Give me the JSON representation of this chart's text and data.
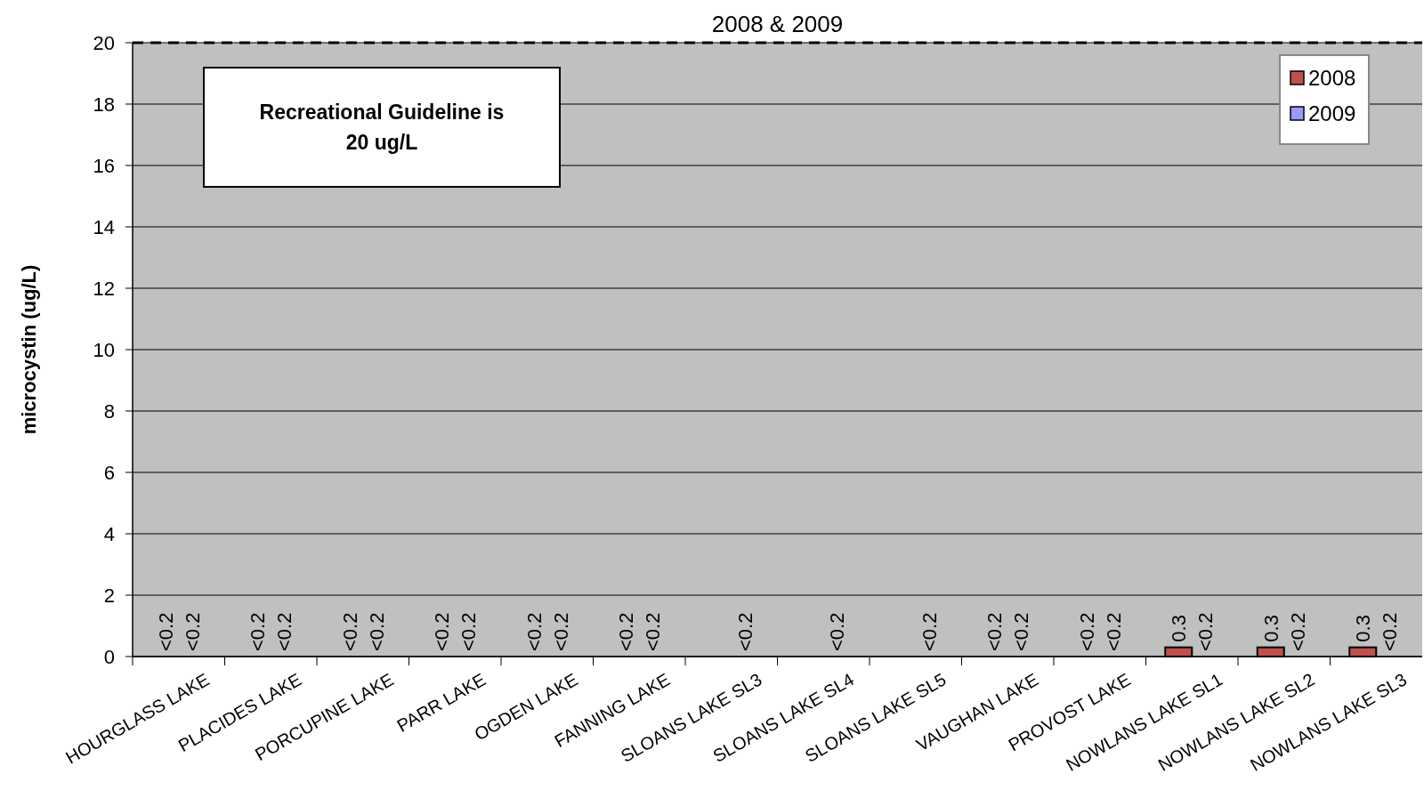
{
  "chart_data": {
    "type": "bar",
    "title": "2008 & 2009",
    "ylabel": "microcystin (ug/L)",
    "categories": [
      "HOURGLASS LAKE",
      "PLACIDES LAKE",
      "PORCUPINE LAKE",
      "PARR LAKE",
      "OGDEN LAKE",
      "FANNING LAKE",
      "SLOANS LAKE SL3",
      "SLOANS LAKE SL4",
      "SLOANS LAKE SL5",
      "VAUGHAN LAKE",
      "PROVOST LAKE",
      "NOWLANS LAKE SL1",
      "NOWLANS LAKE SL2",
      "NOWLANS LAKE SL3"
    ],
    "series": [
      {
        "name": "2008",
        "color": "#c0504d",
        "values": [
          null,
          null,
          null,
          null,
          null,
          null,
          null,
          null,
          null,
          null,
          null,
          0.3,
          0.3,
          0.3
        ],
        "value_labels": [
          "<0.2",
          "<0.2",
          "<0.2",
          "<0.2",
          "<0.2",
          "<0.2",
          null,
          null,
          null,
          "<0.2",
          "<0.2",
          "0.3",
          "0.3",
          "0.3"
        ]
      },
      {
        "name": "2009",
        "color": "#9999ff",
        "values": [
          null,
          null,
          null,
          null,
          null,
          null,
          null,
          null,
          null,
          null,
          null,
          null,
          null,
          null
        ],
        "value_labels": [
          "<0.2",
          "<0.2",
          "<0.2",
          "<0.2",
          "<0.2",
          "<0.2",
          "<0.2",
          "<0.2",
          "<0.2",
          "<0.2",
          "<0.2",
          "<0.2",
          "<0.2",
          "<0.2"
        ]
      }
    ],
    "ylim": [
      0,
      20
    ],
    "yticks": [
      0,
      2,
      4,
      6,
      8,
      10,
      12,
      14,
      16,
      18,
      20
    ],
    "grid": "y",
    "legend": "top right",
    "ref_lines": [
      {
        "axis": "y",
        "value": 20,
        "line_style": "dashed",
        "color": "#000000"
      }
    ],
    "annotations": [
      "Recreational Guideline is 20 ug/L"
    ]
  }
}
